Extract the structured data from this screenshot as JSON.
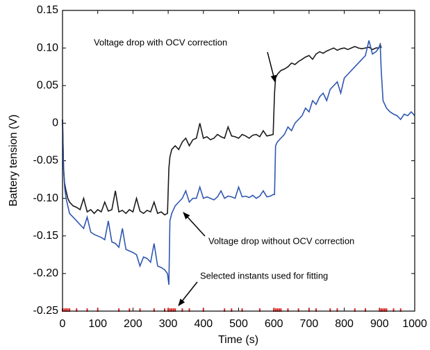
{
  "chart_data": {
    "type": "line",
    "x_label": "Time (s)",
    "y_label": "Battery tension (V)",
    "xlim": [
      0,
      1000
    ],
    "ylim": [
      -0.25,
      0.15
    ],
    "xticks": [
      0,
      100,
      200,
      300,
      400,
      500,
      600,
      700,
      800,
      900,
      1000
    ],
    "yticks": [
      -0.25,
      {
        "value": -0.2,
        "label": "-0.20"
      },
      -0.15,
      {
        "value": -0.1,
        "label": "-0.10"
      },
      -0.05,
      0,
      0.05,
      {
        "value": 0.1,
        "label": "0.10"
      },
      0.15
    ],
    "x": [
      0,
      3,
      6,
      10,
      15,
      20,
      30,
      40,
      50,
      60,
      70,
      80,
      90,
      100,
      110,
      120,
      130,
      140,
      150,
      160,
      170,
      180,
      190,
      200,
      210,
      220,
      230,
      240,
      250,
      260,
      270,
      280,
      290,
      298,
      302,
      305,
      310,
      320,
      330,
      340,
      350,
      360,
      370,
      380,
      390,
      400,
      410,
      420,
      430,
      440,
      450,
      460,
      470,
      480,
      490,
      500,
      510,
      520,
      530,
      540,
      550,
      560,
      570,
      580,
      590,
      598,
      602,
      605,
      610,
      620,
      630,
      640,
      650,
      660,
      670,
      680,
      690,
      700,
      710,
      720,
      730,
      740,
      750,
      760,
      770,
      780,
      790,
      800,
      810,
      820,
      830,
      840,
      850,
      860,
      870,
      880,
      890,
      898,
      902,
      905,
      910,
      920,
      930,
      940,
      950,
      960,
      970,
      980,
      990,
      1000
    ],
    "series": [
      {
        "color": "#1a1a1a",
        "values": [
          0.005,
          -0.06,
          -0.08,
          -0.09,
          -0.1,
          -0.105,
          -0.11,
          -0.112,
          -0.115,
          -0.1,
          -0.118,
          -0.115,
          -0.12,
          -0.115,
          -0.118,
          -0.105,
          -0.117,
          -0.115,
          -0.09,
          -0.118,
          -0.116,
          -0.12,
          -0.115,
          -0.118,
          -0.1,
          -0.117,
          -0.12,
          -0.116,
          -0.118,
          -0.105,
          -0.12,
          -0.118,
          -0.122,
          -0.12,
          -0.06,
          -0.045,
          -0.035,
          -0.03,
          -0.035,
          -0.025,
          -0.02,
          -0.03,
          -0.022,
          -0.02,
          0.0,
          -0.02,
          -0.018,
          -0.022,
          -0.02,
          -0.015,
          -0.018,
          -0.02,
          -0.005,
          -0.017,
          -0.018,
          -0.02,
          -0.015,
          -0.017,
          -0.02,
          -0.016,
          -0.015,
          -0.018,
          -0.01,
          -0.017,
          -0.016,
          -0.015,
          0.04,
          0.06,
          0.065,
          0.07,
          0.072,
          0.075,
          0.08,
          0.078,
          0.082,
          0.085,
          0.088,
          0.09,
          0.085,
          0.092,
          0.095,
          0.093,
          0.096,
          0.098,
          0.1,
          0.097,
          0.099,
          0.1,
          0.098,
          0.1,
          0.102,
          0.1,
          0.099,
          0.1,
          0.101,
          0.098,
          0.1,
          0.1,
          0.105,
          0.1,
          null,
          null,
          null,
          null,
          null,
          null,
          null,
          null,
          null,
          null
        ]
      },
      {
        "color": "#2e56b0",
        "values": [
          0.005,
          -0.06,
          -0.085,
          -0.1,
          -0.11,
          -0.12,
          -0.125,
          -0.13,
          -0.135,
          -0.14,
          -0.125,
          -0.145,
          -0.148,
          -0.15,
          -0.152,
          -0.155,
          -0.13,
          -0.158,
          -0.16,
          -0.165,
          -0.14,
          -0.168,
          -0.17,
          -0.172,
          -0.175,
          -0.19,
          -0.178,
          -0.18,
          -0.185,
          -0.16,
          -0.19,
          -0.192,
          -0.195,
          -0.2,
          -0.215,
          -0.13,
          -0.12,
          -0.11,
          -0.105,
          -0.1,
          -0.09,
          -0.105,
          -0.1,
          -0.1,
          -0.085,
          -0.1,
          -0.098,
          -0.1,
          -0.102,
          -0.098,
          -0.09,
          -0.1,
          -0.097,
          -0.098,
          -0.1,
          -0.085,
          -0.098,
          -0.097,
          -0.099,
          -0.096,
          -0.1,
          -0.097,
          -0.09,
          -0.098,
          -0.097,
          -0.095,
          -0.095,
          -0.03,
          -0.025,
          -0.02,
          -0.015,
          -0.005,
          -0.01,
          0.0,
          0.005,
          0.01,
          0.02,
          0.015,
          0.03,
          0.025,
          0.035,
          0.04,
          0.03,
          0.045,
          0.05,
          0.055,
          0.04,
          0.06,
          0.065,
          0.07,
          0.075,
          0.08,
          0.085,
          0.09,
          0.11,
          0.092,
          0.095,
          0.1,
          0.105,
          0.07,
          0.03,
          0.02,
          0.015,
          0.012,
          0.01,
          0.005,
          0.012,
          0.01,
          0.015,
          0.01
        ]
      }
    ],
    "selected_instants": {
      "color": "#e02020",
      "x": [
        0,
        5,
        10,
        15,
        20,
        40,
        70,
        100,
        160,
        190,
        220,
        260,
        290,
        300,
        305,
        310,
        315,
        320,
        340,
        360,
        400,
        460,
        480,
        510,
        560,
        600,
        605,
        610,
        615,
        620,
        640,
        670,
        700,
        720,
        760,
        780,
        830,
        860,
        900,
        905,
        910,
        915,
        920,
        940,
        960
      ]
    },
    "annotations": [
      "Voltage drop with OCV correction",
      "Voltage drop without OCV correction",
      "Selected instants used for fitting"
    ]
  }
}
